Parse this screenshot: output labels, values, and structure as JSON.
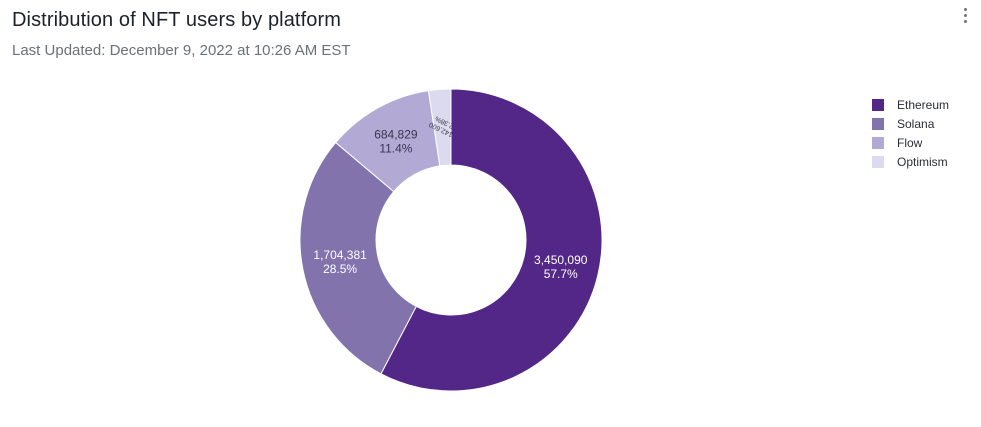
{
  "header": {
    "title": "Distribution of NFT users by platform",
    "subtitle": "Last Updated: December 9, 2022 at 10:26 AM EST"
  },
  "icons": {
    "menu": "kebab-menu-icon"
  },
  "chart_data": {
    "type": "pie",
    "variant": "donut",
    "title": "Distribution of NFT users by platform",
    "legend_position": "right",
    "series": [
      {
        "name": "Ethereum",
        "value": 3450090,
        "value_label": "3,450,090",
        "percent_label": "57.7%",
        "color": "#532787",
        "label_color": "#ffffff",
        "label_size": "large"
      },
      {
        "name": "Solana",
        "value": 1704381,
        "value_label": "1,704,381",
        "percent_label": "28.5%",
        "color": "#8373ad",
        "label_color": "#ffffff",
        "label_size": "large"
      },
      {
        "name": "Flow",
        "value": 684829,
        "value_label": "684,829",
        "percent_label": "11.4%",
        "color": "#b2aad5",
        "label_color": "#3a3550",
        "label_size": "large"
      },
      {
        "name": "Optimism",
        "value": 142600,
        "value_label": "142,600",
        "percent_label": "2.38%",
        "color": "#dcdaee",
        "label_color": "#3a3550",
        "label_size": "small"
      }
    ]
  }
}
